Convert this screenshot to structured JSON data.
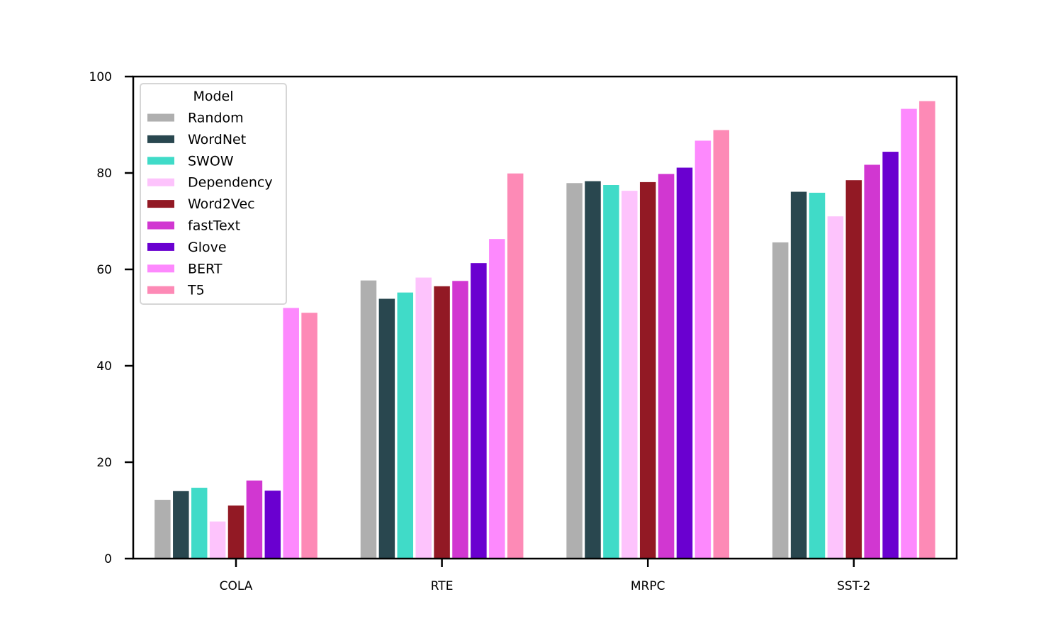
{
  "chart_data": {
    "type": "bar",
    "title": "",
    "xlabel": "",
    "ylabel": "",
    "ylim": [
      0,
      100
    ],
    "yticks": [
      0,
      20,
      40,
      60,
      80,
      100
    ],
    "grid": false,
    "categories": [
      "COLA",
      "RTE",
      "MRPC",
      "SST-2"
    ],
    "legend": {
      "title": "Model",
      "placement": "top-left"
    },
    "series": [
      {
        "name": "Random",
        "color": "#afafaf",
        "values": [
          12.2,
          57.7,
          77.9,
          65.6
        ]
      },
      {
        "name": "WordNet",
        "color": "#29474f",
        "values": [
          14.0,
          53.9,
          78.3,
          76.1
        ]
      },
      {
        "name": "SWOW",
        "color": "#40dbc8",
        "values": [
          14.7,
          55.2,
          77.5,
          75.9
        ]
      },
      {
        "name": "Dependency",
        "color": "#fdc3fc",
        "values": [
          7.7,
          58.3,
          76.3,
          71.0
        ]
      },
      {
        "name": "Word2Vec",
        "color": "#921924",
        "values": [
          11.0,
          56.5,
          78.1,
          78.5
        ]
      },
      {
        "name": "fastText",
        "color": "#d137d1",
        "values": [
          16.2,
          57.6,
          79.8,
          81.7
        ]
      },
      {
        "name": "Glove",
        "color": "#6a00d0",
        "values": [
          14.1,
          61.3,
          81.1,
          84.4
        ]
      },
      {
        "name": "BERT",
        "color": "#fd89fd",
        "values": [
          52.0,
          66.3,
          86.7,
          93.3
        ]
      },
      {
        "name": "T5",
        "color": "#fd8ab6",
        "values": [
          51.0,
          79.9,
          88.9,
          94.9
        ]
      }
    ]
  }
}
